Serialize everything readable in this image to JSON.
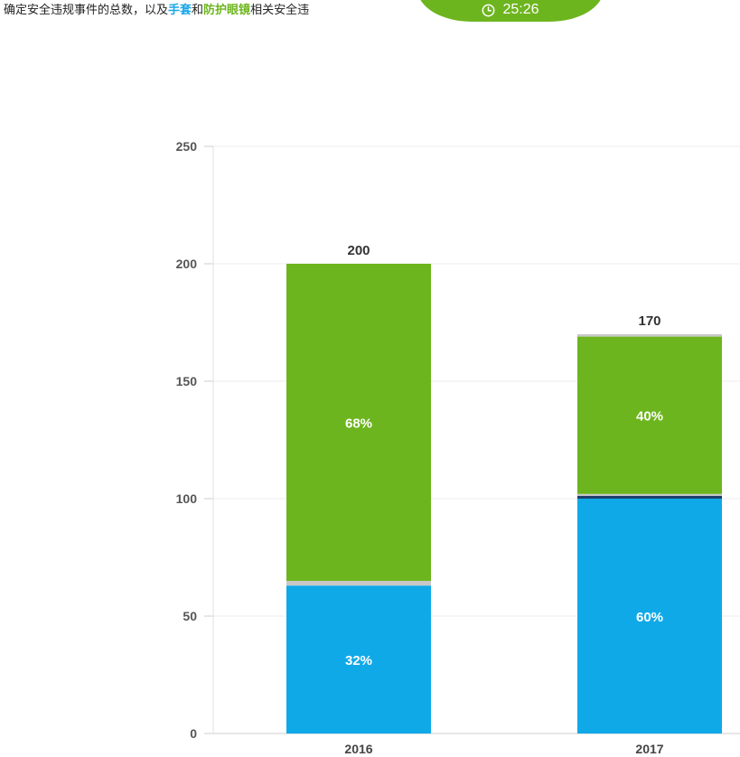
{
  "instruction": {
    "prefix": "确定安全违规事件的总数，以及",
    "term1": "手套",
    "mid": "和",
    "term2": "防护眼镜",
    "suffix": "相关安全违",
    "term1_color": "#1aa7e8",
    "term2_color": "#6db51e"
  },
  "timer": {
    "time": "25:26",
    "icon": "clock-icon",
    "color": "#6db51e"
  },
  "chart_data": {
    "type": "bar",
    "stacked": true,
    "categories": [
      "2016",
      "2017"
    ],
    "series": [
      {
        "values": [
          63,
          100
        ],
        "percent_labels": [
          "32%",
          "60%"
        ],
        "color": "#10a9e8"
      },
      {
        "values": [
          2,
          2
        ],
        "percent_labels": [
          "",
          ""
        ],
        "color": "#c8c8c8"
      },
      {
        "values": [
          135,
          67
        ],
        "percent_labels": [
          "68%",
          "40%"
        ],
        "color": "#6db51e"
      },
      {
        "values": [
          0,
          1
        ],
        "percent_labels": [
          "",
          ""
        ],
        "color": "#c8c8c8"
      }
    ],
    "totals": [
      "200",
      "170"
    ],
    "yticks": [
      0,
      50,
      100,
      150,
      200,
      250
    ],
    "ylim": [
      0,
      250
    ],
    "grid": true,
    "divider_color": "#1f3f6e",
    "title": "",
    "xlabel": "",
    "ylabel": ""
  }
}
